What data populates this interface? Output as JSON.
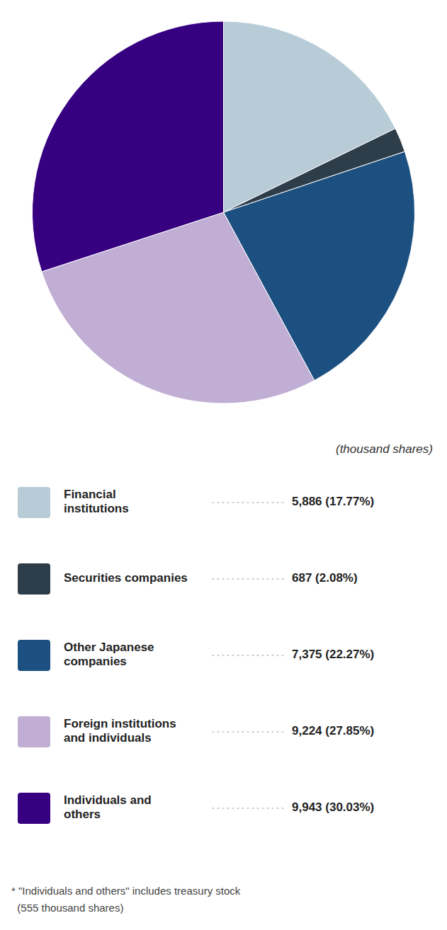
{
  "chart_data": {
    "type": "pie",
    "subtitle": "(thousand shares)",
    "categories": [
      "Financial\ninstitutions",
      "Securities companies",
      "Other Japanese\ncompanies",
      "Foreign institutions\nand individuals",
      "Individuals and\nothers"
    ],
    "values": [
      5886,
      687,
      7375,
      9224,
      9943
    ],
    "value_labels": [
      "5,886 (17.77%)",
      "687 (2.08%)",
      "7,375 (22.27%)",
      "9,224 (27.85%)",
      "9,943 (30.03%)"
    ],
    "colors": [
      "#b8ccd8",
      "#2d3d4a",
      "#1c5080",
      "#c0aed4",
      "#360080"
    ],
    "legend": "bottom",
    "annotations": [
      "* \"Individuals and others\" includes treasury stock",
      "  (555 thousand shares)"
    ]
  }
}
